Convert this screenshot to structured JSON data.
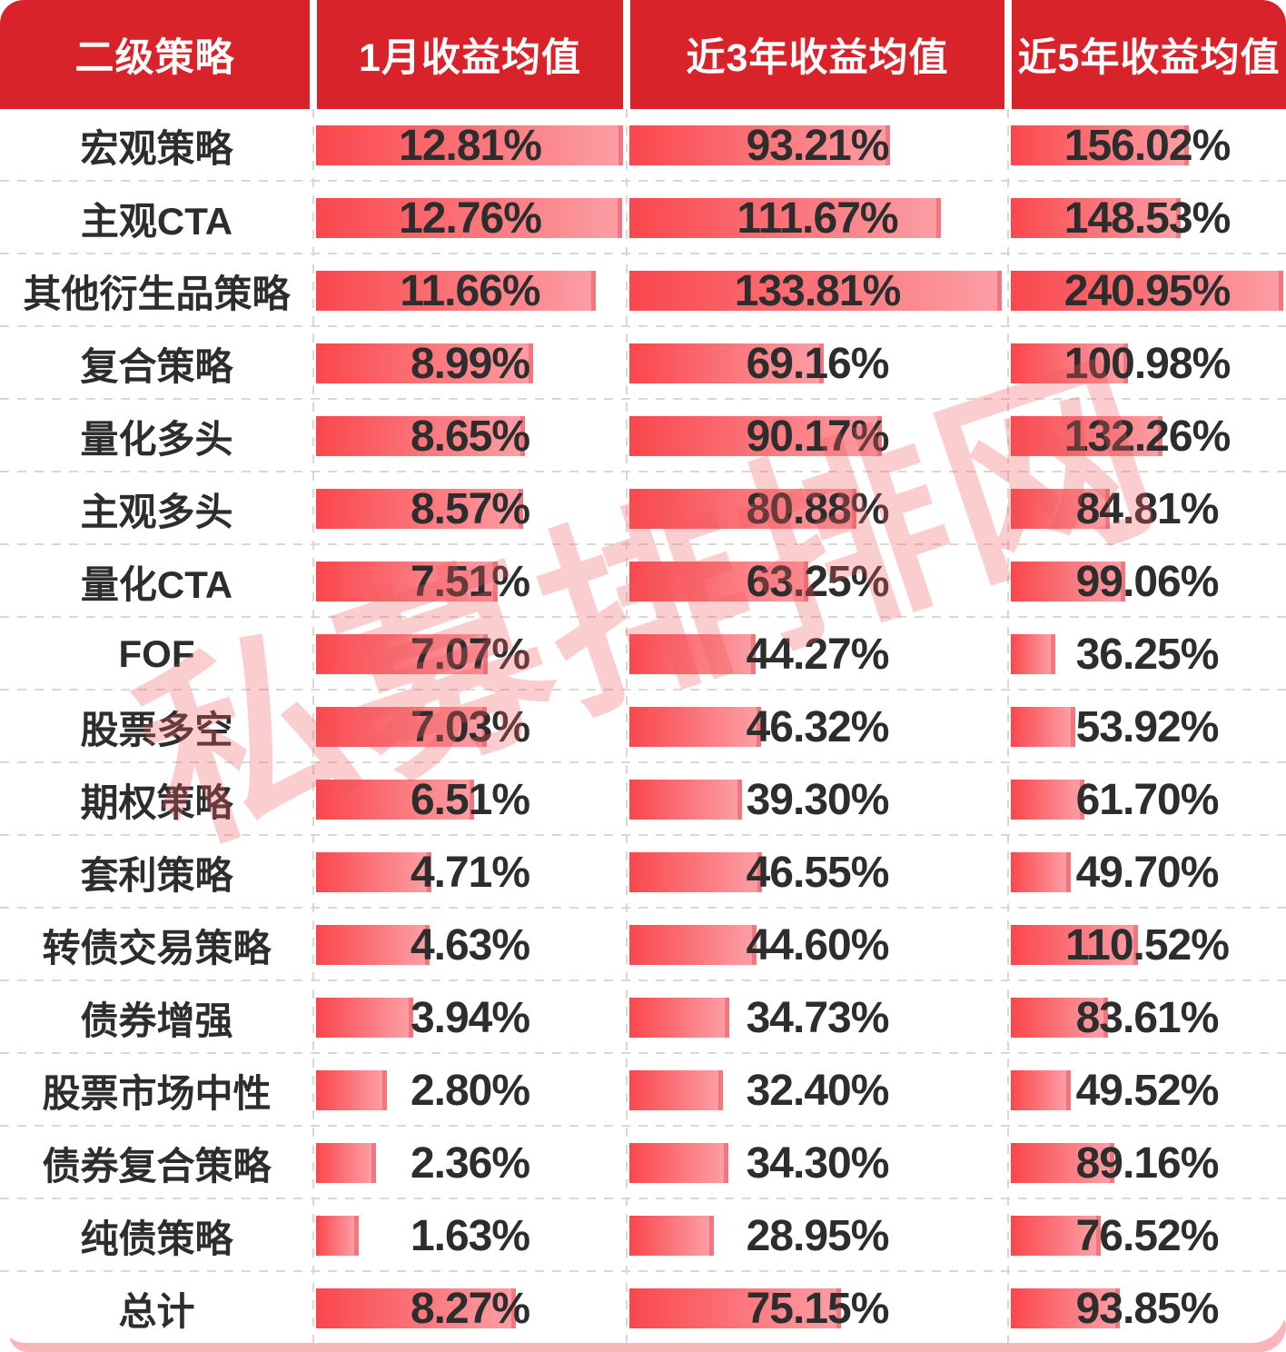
{
  "header": {
    "col1": "二级策略",
    "col2": "1月收益均值",
    "col3": "近3年收益均值",
    "col4": "近5年收益均值"
  },
  "watermark_text": "私募排排网",
  "colors": {
    "header_bg": "#D9232B",
    "bar_gradient_start": "#FA474C",
    "bar_gradient_end": "#FB9EA4",
    "bar_end_cap": "#F3767E",
    "text": "#2D2D2D",
    "grid_dash": "#DBD8D4",
    "bottom_strip": "#F9B5BA",
    "watermark": "rgba(238,88,94,0.30)"
  },
  "chart_data": {
    "type": "bar",
    "orientation": "horizontal",
    "title": "",
    "value_format": "0.00%",
    "scaling_note": "each column's bars are scaled so the column maximum fills the column width",
    "categories": [
      "宏观策略",
      "主观CTA",
      "其他衍生品策略",
      "复合策略",
      "量化多头",
      "主观多头",
      "量化CTA",
      "FOF",
      "股票多空",
      "期权策略",
      "套利策略",
      "转债交易策略",
      "债券增强",
      "股票市场中性",
      "债券复合策略",
      "纯债策略",
      "总计"
    ],
    "series": [
      {
        "name": "1月收益均值",
        "values": [
          12.81,
          12.76,
          11.66,
          8.99,
          8.65,
          8.57,
          7.51,
          7.07,
          7.03,
          6.51,
          4.71,
          4.63,
          3.94,
          2.8,
          2.36,
          1.63,
          8.27
        ]
      },
      {
        "name": "近3年收益均值",
        "values": [
          93.21,
          111.67,
          133.81,
          69.16,
          90.17,
          80.88,
          63.25,
          44.27,
          46.32,
          39.3,
          46.55,
          44.6,
          34.73,
          32.4,
          34.3,
          28.95,
          75.15
        ]
      },
      {
        "name": "近5年收益均值",
        "values": [
          156.02,
          148.53,
          240.95,
          100.98,
          132.26,
          84.81,
          99.06,
          36.25,
          53.92,
          61.7,
          49.7,
          110.52,
          83.61,
          49.52,
          89.16,
          76.52,
          93.85
        ]
      }
    ]
  }
}
